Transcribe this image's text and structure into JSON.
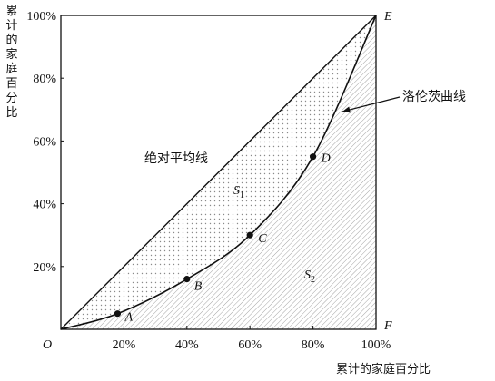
{
  "y_axis": {
    "label_chars": [
      "累",
      "计",
      "的",
      "家",
      "庭",
      "百",
      "分",
      "比"
    ],
    "ticks": [
      {
        "label": "20%",
        "value": 20
      },
      {
        "label": "40%",
        "value": 40
      },
      {
        "label": "60%",
        "value": 60
      },
      {
        "label": "80%",
        "value": 80
      },
      {
        "label": "100%",
        "value": 100
      }
    ]
  },
  "x_axis": {
    "label": "累计的家庭百分比",
    "ticks": [
      {
        "label": "20%",
        "value": 20
      },
      {
        "label": "40%",
        "value": 40
      },
      {
        "label": "60%",
        "value": 60
      },
      {
        "label": "80%",
        "value": 80
      },
      {
        "label": "100%",
        "value": 100
      }
    ]
  },
  "corners": {
    "origin": "O",
    "top_right": "E",
    "bottom_right": "F"
  },
  "equality_line_label": "绝对平均线",
  "lorenz_label": "洛伦茨曲线",
  "region_labels": {
    "s1_main": "S",
    "s1_sub": "1",
    "s2_main": "S",
    "s2_sub": "2"
  },
  "points": [
    {
      "name": "A",
      "x": 18,
      "y": 5
    },
    {
      "name": "B",
      "x": 40,
      "y": 16
    },
    {
      "name": "C",
      "x": 60,
      "y": 30
    },
    {
      "name": "D",
      "x": 80,
      "y": 55
    }
  ],
  "colors": {
    "ink": "#111111",
    "dot_fill": "#8a8a8a",
    "hatch": "#8a8a8a"
  }
}
